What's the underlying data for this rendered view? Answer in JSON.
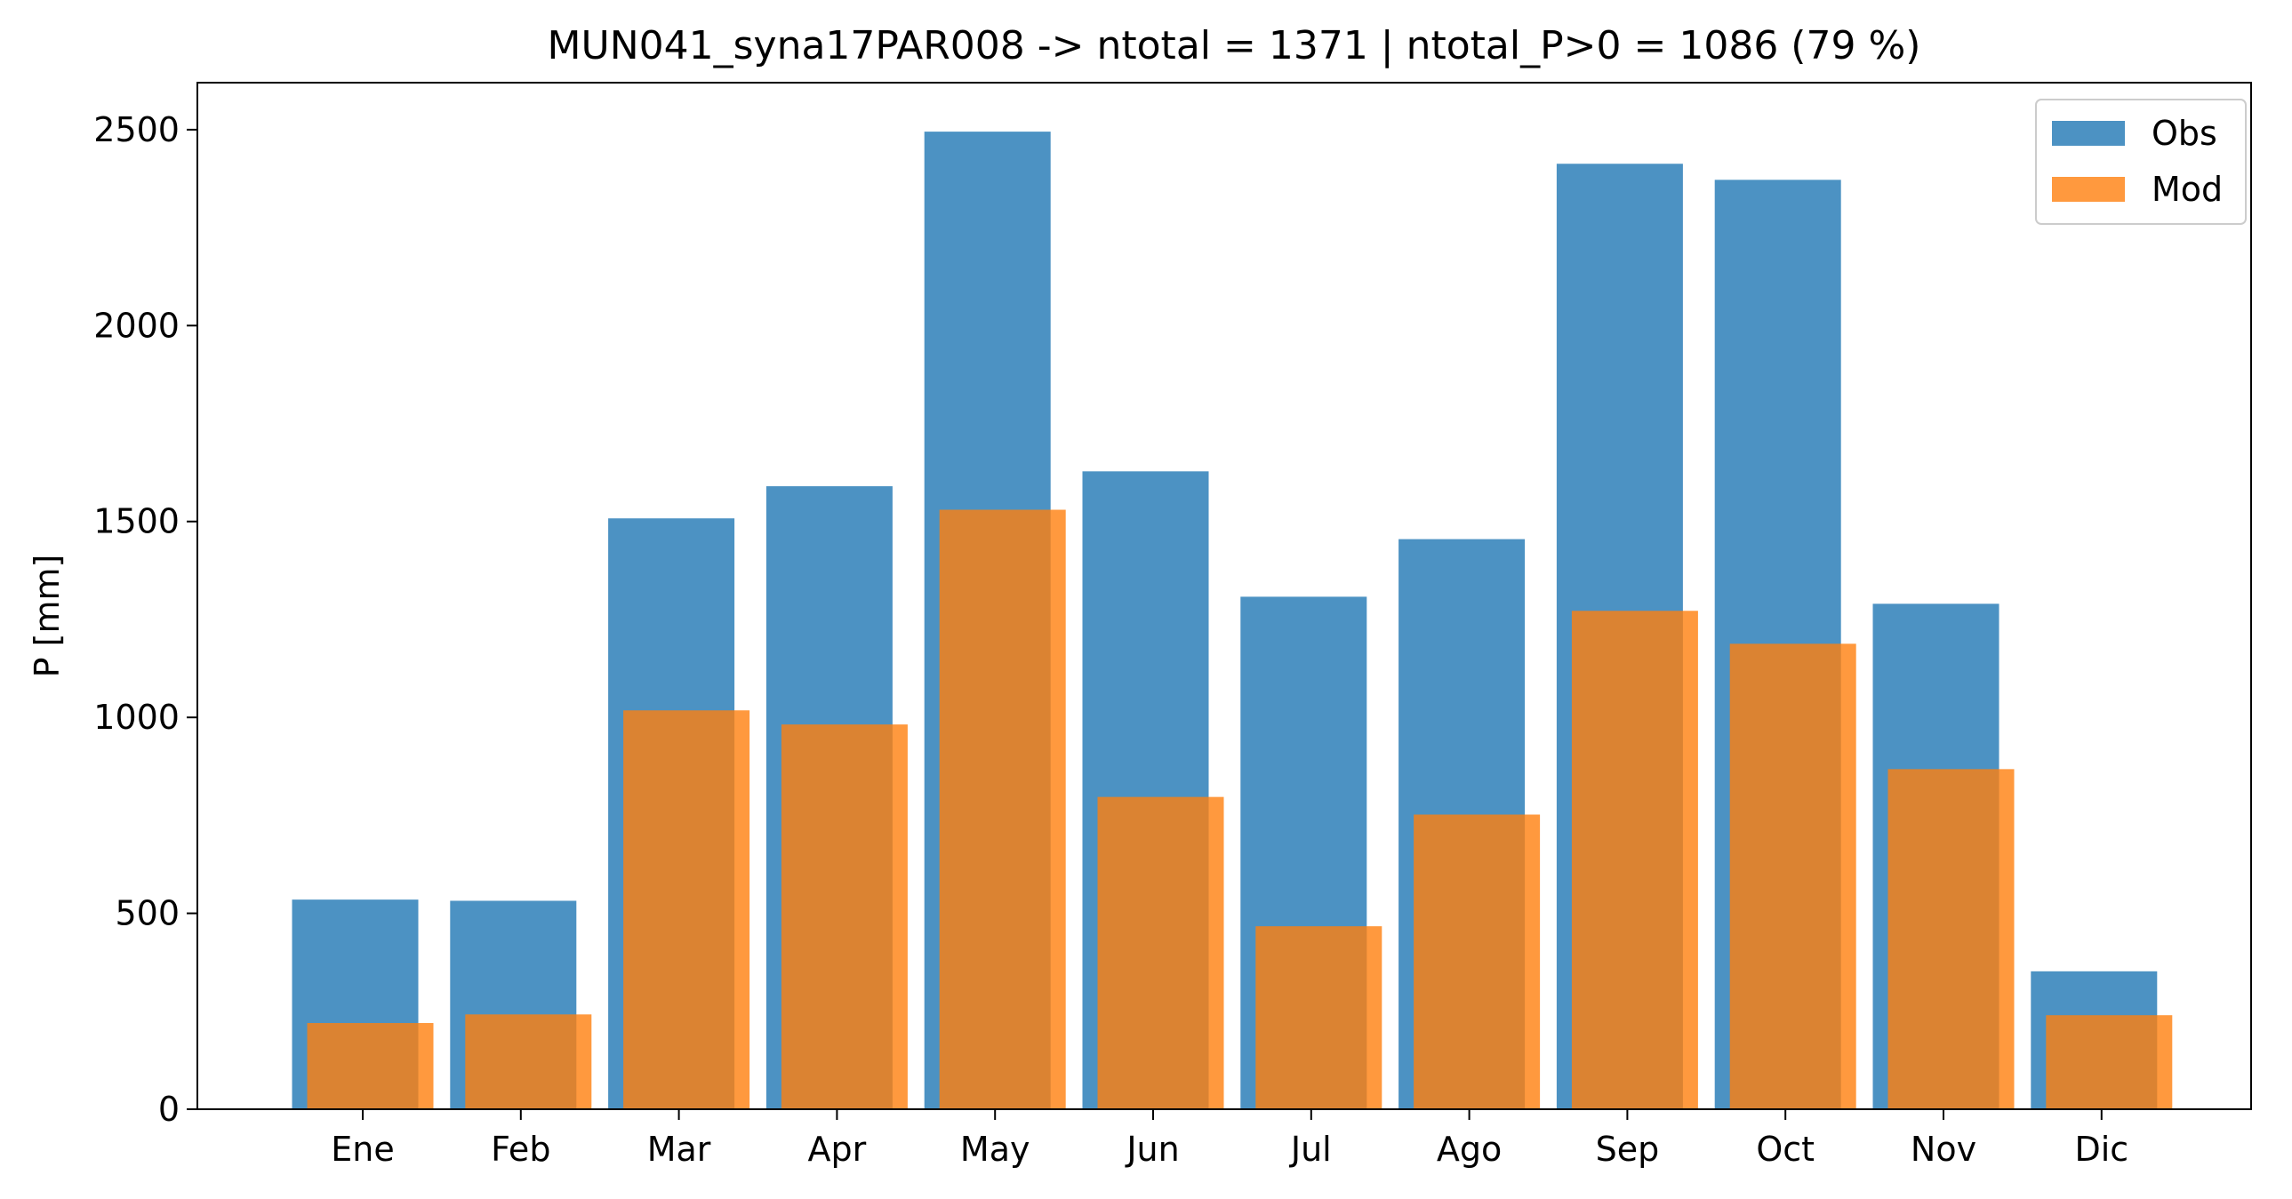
{
  "chart_data": {
    "type": "bar",
    "title": "MUN041_syna17PAR008 -> ntotal = 1371 | ntotal_P>0 = 1086 (79 %)",
    "xlabel": "",
    "ylabel": "P [mm]",
    "categories": [
      "Ene",
      "Feb",
      "Mar",
      "Apr",
      "May",
      "Jun",
      "Jul",
      "Ago",
      "Sep",
      "Oct",
      "Nov",
      "Dic"
    ],
    "series": [
      {
        "name": "Obs",
        "color": "#1f77b4",
        "opacity": 0.8,
        "values": [
          535,
          532,
          1508,
          1590,
          2495,
          1628,
          1308,
          1455,
          2413,
          2372,
          1290,
          352
        ]
      },
      {
        "name": "Mod",
        "color": "#ff7f0e",
        "opacity": 0.8,
        "values": [
          220,
          242,
          1018,
          982,
          1530,
          797,
          467,
          752,
          1272,
          1188,
          868,
          240
        ]
      }
    ],
    "ylim": [
      0,
      2620
    ],
    "yticks": [
      0,
      500,
      1000,
      1500,
      2000,
      2500
    ],
    "grid": false,
    "legend_position": "top-right"
  }
}
